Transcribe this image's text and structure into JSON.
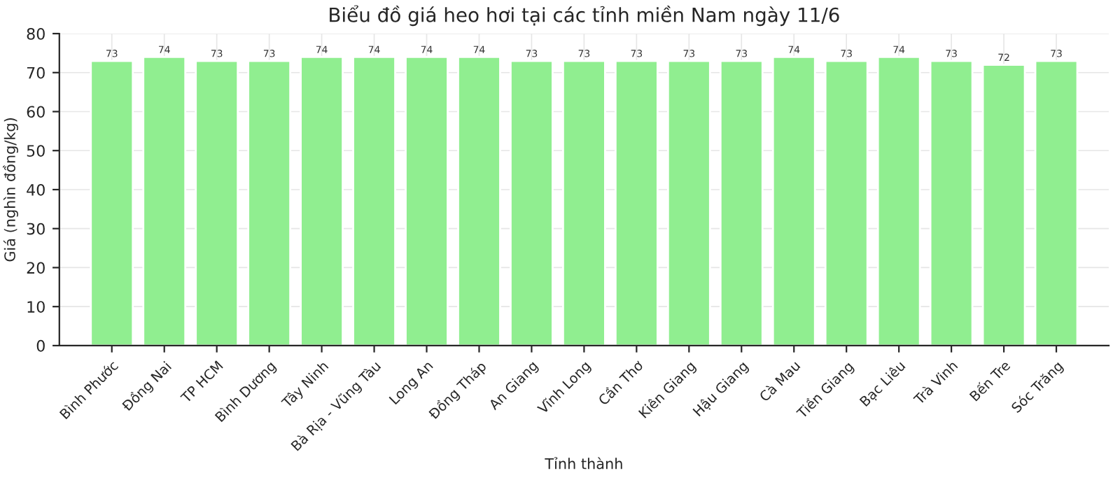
{
  "chart_data": {
    "type": "bar",
    "title": "Biểu đồ giá heo hơi tại các tỉnh miền Nam ngày 11/6",
    "xlabel": "Tỉnh thành",
    "ylabel": "Giá (nghìn đồng/kg)",
    "categories": [
      "Bình Phước",
      "Đồng Nai",
      "TP HCM",
      "Bình Dương",
      "Tây Ninh",
      "Bà Rịa - Vũng Tàu",
      "Long An",
      "Đồng Tháp",
      "An Giang",
      "Vĩnh Long",
      "Cần Thơ",
      "Kiên Giang",
      "Hậu Giang",
      "Cà Mau",
      "Tiền Giang",
      "Bạc Liêu",
      "Trà Vinh",
      "Bến Tre",
      "Sóc Trăng"
    ],
    "values": [
      73,
      74,
      73,
      73,
      74,
      74,
      74,
      74,
      73,
      73,
      73,
      73,
      73,
      74,
      73,
      74,
      73,
      72,
      73
    ],
    "color": "#90ee90",
    "ylim": [
      0,
      80
    ],
    "yticks": [
      0,
      10,
      20,
      30,
      40,
      50,
      60,
      70,
      80
    ],
    "grid": true,
    "data_labels": true,
    "legend": false
  }
}
